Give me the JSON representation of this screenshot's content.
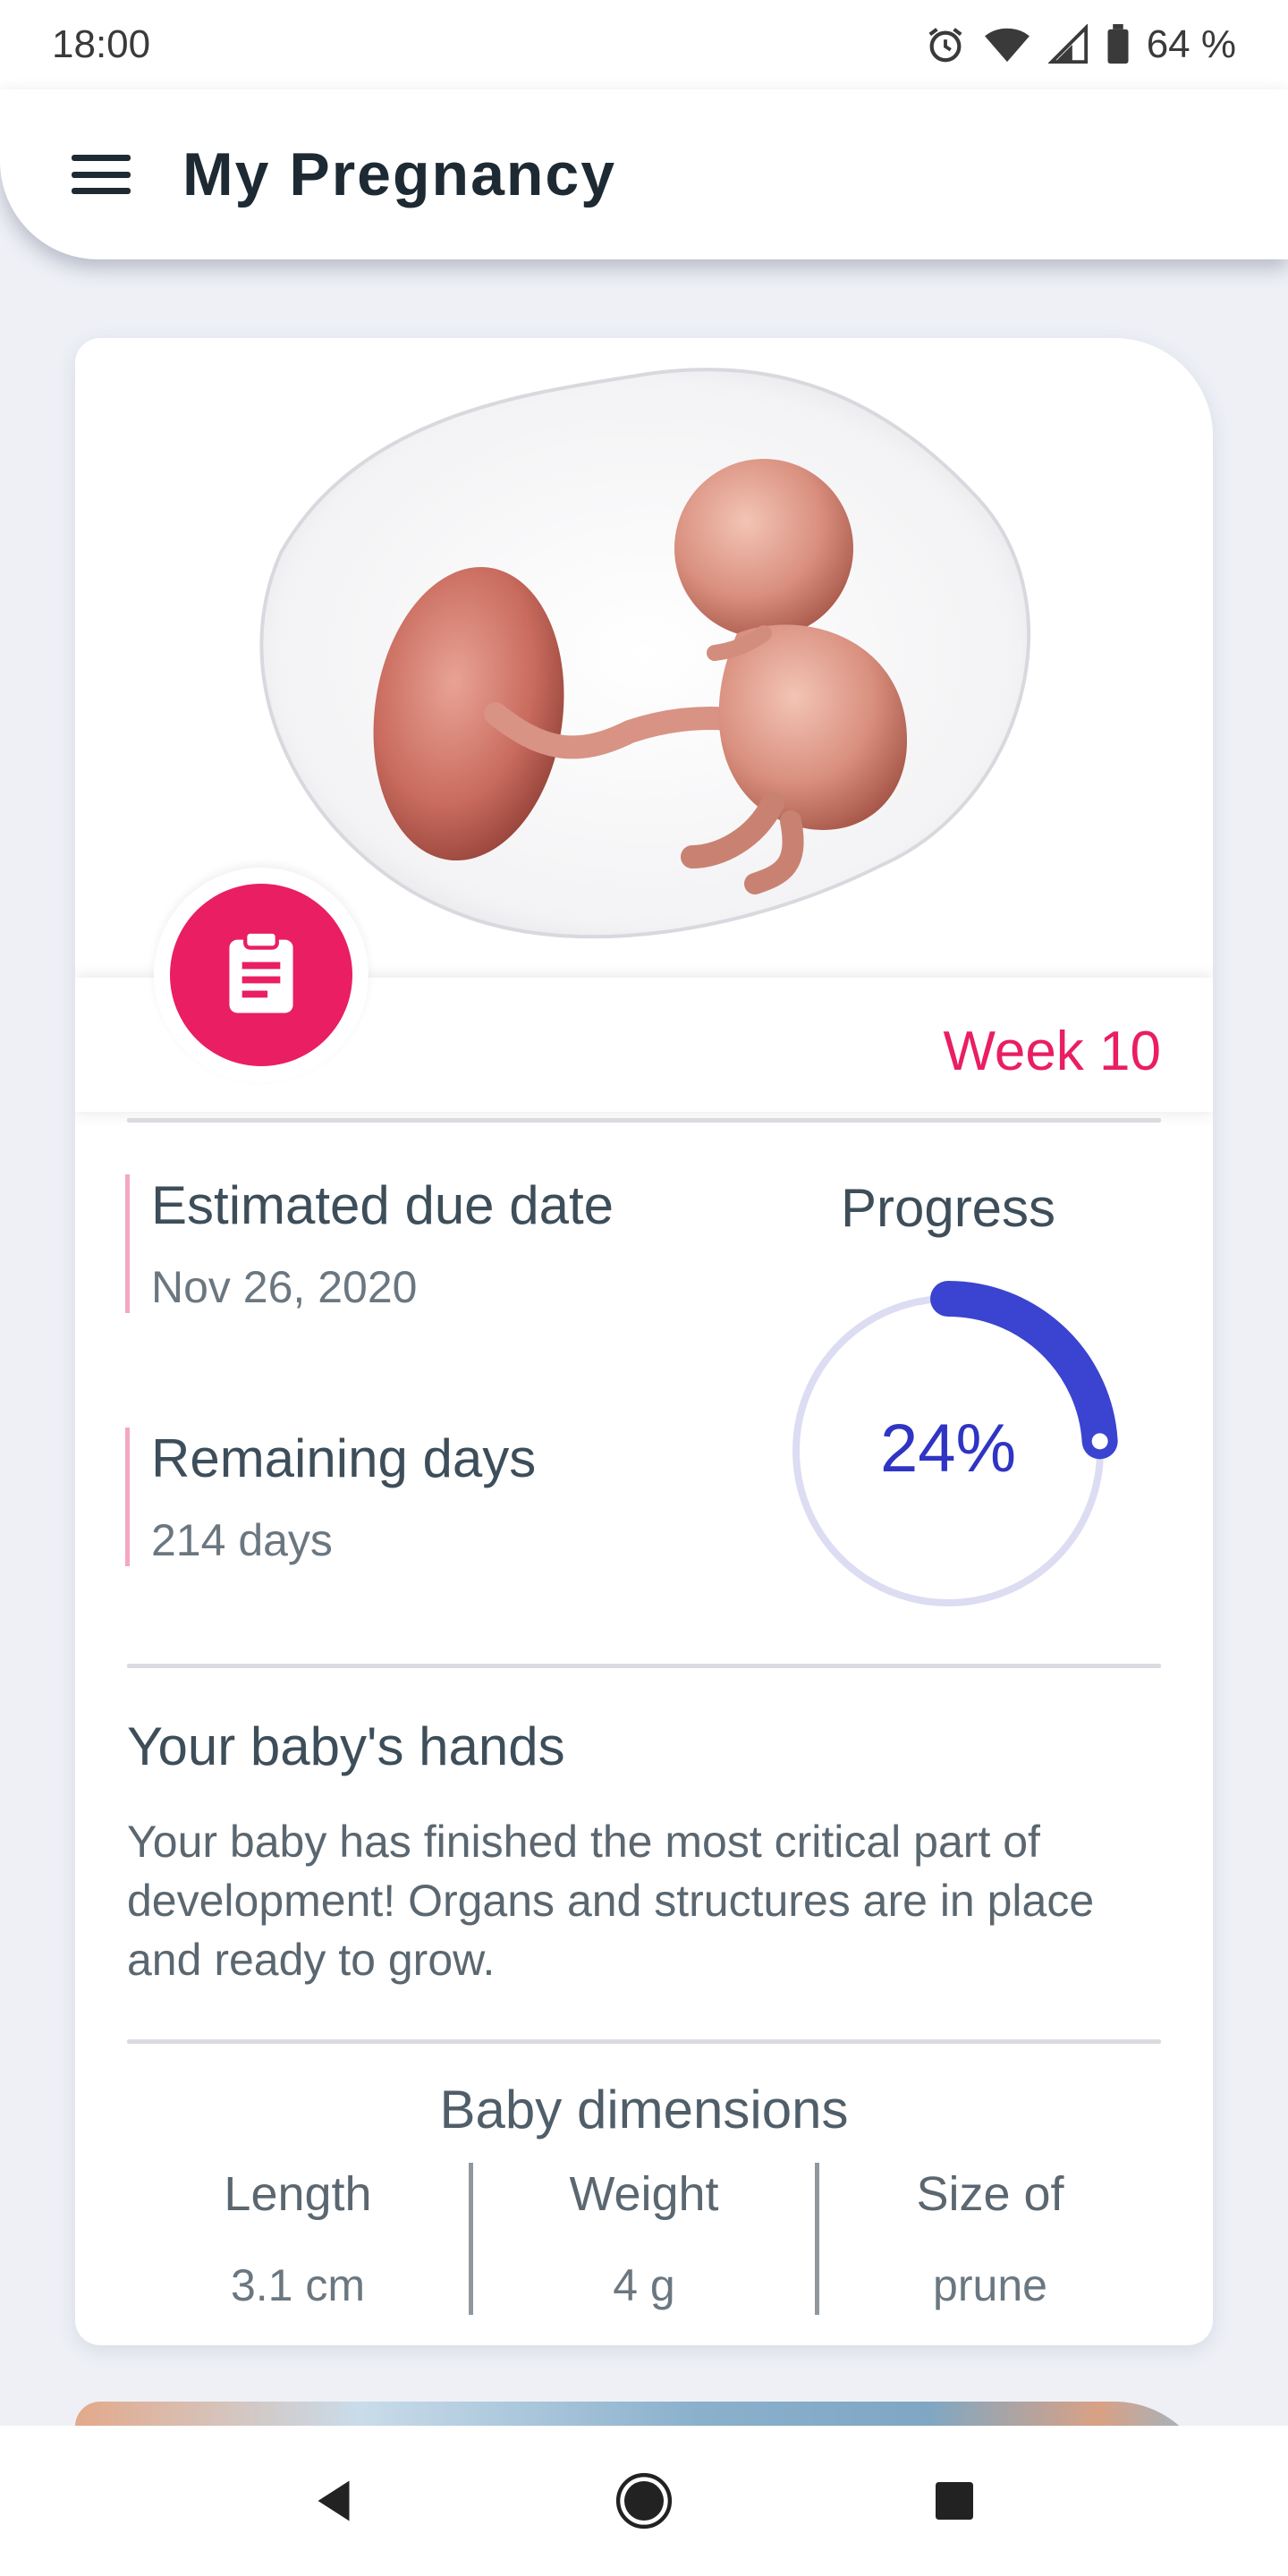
{
  "status_bar": {
    "time": "18:00",
    "battery": "64 %",
    "icons": [
      "alarm-icon",
      "wifi-icon",
      "signal-icon",
      "battery-icon"
    ]
  },
  "app_bar": {
    "title": "My Pregnancy",
    "menu_icon": "hamburger-menu-icon"
  },
  "colors": {
    "accent": "#e91e63",
    "progress": "#2f34c4",
    "progress_track": "#dcdcf2",
    "text_dark": "#1d2a33",
    "text": "#3d4e5a",
    "background": "#eef0f6"
  },
  "week_card": {
    "week_label": "Week 10",
    "badge_icon": "clipboard-icon",
    "estimated_due_date": {
      "label": "Estimated due date",
      "value": "Nov 26, 2020"
    },
    "remaining_days": {
      "label": "Remaining days",
      "value": "214 days"
    },
    "progress": {
      "label": "Progress",
      "percent_text": "24%",
      "fraction": 0.24
    },
    "highlight": {
      "title": "Your baby's hands",
      "body": "Your baby has finished the most critical part of development! Organs and structures are in place and ready to grow."
    },
    "dimensions": {
      "title": "Baby dimensions",
      "items": [
        {
          "label": "Length",
          "value": "3.1 cm"
        },
        {
          "label": "Weight",
          "value": "4 g"
        },
        {
          "label": "Size of",
          "value": "prune"
        }
      ]
    }
  },
  "nav_bar": {
    "icons": [
      "back-triangle-icon",
      "home-circle-icon",
      "recents-square-icon"
    ]
  }
}
